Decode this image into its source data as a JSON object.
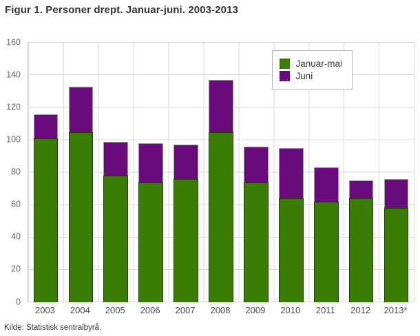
{
  "title": "Figur 1. Personer drept. Januar-juni. 2003-2013",
  "source": "Kilde: Statistisk sentralbyrå.",
  "colors": {
    "januar_mai_green": "#3a7d05",
    "juni_purple": "#690a7d",
    "gridline": "#d9d9d9",
    "axis_text": "#666666",
    "title_text": "#333333"
  },
  "chart_data": {
    "type": "bar",
    "stacked": true,
    "title": "Figur 1. Personer drept. Januar-juni. 2003-2013",
    "xlabel": "",
    "ylabel": "",
    "categories": [
      "2003",
      "2004",
      "2005",
      "2006",
      "2007",
      "2008",
      "2009",
      "2010",
      "2011",
      "2012",
      "2013*"
    ],
    "series": [
      {
        "name": "Januar-mai",
        "color": "#3a7d05",
        "values": [
          101,
          105,
          78,
          74,
          76,
          105,
          74,
          64,
          62,
          64,
          58
        ]
      },
      {
        "name": "Juni",
        "color": "#690a7d",
        "values": [
          15,
          28,
          21,
          24,
          21,
          32,
          22,
          31,
          21,
          11,
          18
        ]
      }
    ],
    "stacked_totals": [
      116,
      133,
      99,
      98,
      97,
      137,
      96,
      95,
      83,
      75,
      76
    ],
    "ylim": [
      0,
      160
    ],
    "ytick_step": 20,
    "grid": true,
    "legend_position": "top-right"
  }
}
